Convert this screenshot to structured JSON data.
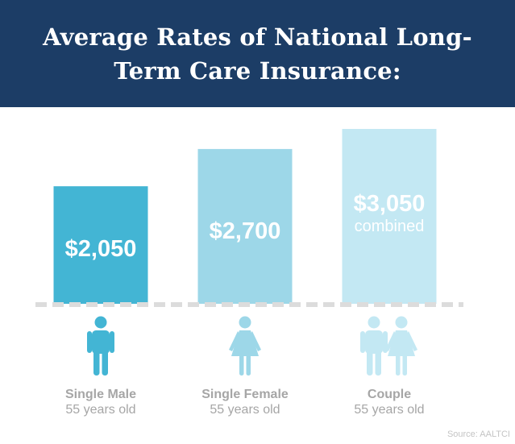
{
  "colors": {
    "header_bg": "#1c3d66",
    "single_male": "#43b5d4",
    "single_female": "#9dd7e8",
    "couple": "#c3e8f3",
    "axis": "#dcdcdc",
    "category_text": "#a6a6a6",
    "source_text": "#c4c4c4"
  },
  "icons": [
    "male-person-icon",
    "female-person-icon",
    "couple-icon"
  ],
  "source": "Source: AALTCI",
  "chart_data": {
    "type": "bar",
    "title": "Average Rates of National Long-Term Care Insurance:",
    "categories": [
      "Single Male",
      "Single Female",
      "Couple"
    ],
    "subcategories": [
      "55 years old",
      "55 years old",
      "55 years old"
    ],
    "values": [
      2050,
      2700,
      3050
    ],
    "value_labels": [
      "$2,050",
      "$2,700",
      "$3,050"
    ],
    "value_sublabels": [
      "",
      "",
      "combined"
    ],
    "ylim": [
      0,
      3050
    ],
    "grid": false,
    "legend": "none",
    "xlabel": "",
    "ylabel": ""
  }
}
